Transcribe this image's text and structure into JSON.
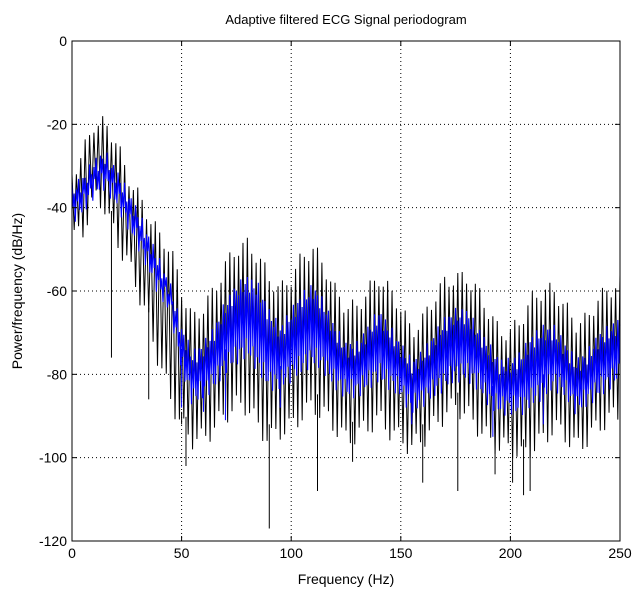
{
  "chart_data": {
    "type": "line",
    "title": "Adaptive filtered ECG Signal periodogram",
    "xlabel": "Frequency (Hz)",
    "ylabel": "Power/frequency (dB/Hz)",
    "xlim": [
      0,
      250
    ],
    "ylim": [
      -120,
      0
    ],
    "xticks": [
      "0",
      "50",
      "100",
      "150",
      "200",
      "250"
    ],
    "yticks": [
      "-120",
      "-100",
      "-80",
      "-60",
      "-40",
      "-20",
      "0"
    ],
    "grid": true,
    "legend": "none",
    "colors": {
      "series_a": "#000000",
      "series_b": "#0000ff"
    },
    "series": [
      {
        "color": "#000000",
        "x": [
          0,
          5,
          10,
          15,
          20,
          25,
          30,
          35,
          40,
          45,
          50,
          55,
          60,
          65,
          70,
          75,
          80,
          85,
          90,
          95,
          100,
          105,
          110,
          115,
          120,
          125,
          130,
          135,
          140,
          145,
          150,
          155,
          160,
          165,
          170,
          175,
          180,
          185,
          190,
          195,
          200,
          205,
          210,
          215,
          220,
          225,
          230,
          235,
          240,
          245,
          250
        ],
        "upper": [
          -30,
          -25,
          -18,
          -18,
          -22,
          -30,
          -35,
          -40,
          -45,
          -48,
          -58,
          -65,
          -62,
          -58,
          -52,
          -48,
          -47,
          -50,
          -55,
          -58,
          -55,
          -50,
          -48,
          -52,
          -58,
          -62,
          -62,
          -58,
          -55,
          -58,
          -62,
          -68,
          -65,
          -60,
          -56,
          -55,
          -55,
          -58,
          -63,
          -68,
          -68,
          -65,
          -60,
          -58,
          -58,
          -62,
          -66,
          -65,
          -60,
          -58,
          -56
        ],
        "lower": [
          -50,
          -48,
          -40,
          -42,
          -50,
          -55,
          -62,
          -70,
          -80,
          -88,
          -95,
          -98,
          -98,
          -95,
          -92,
          -90,
          -90,
          -95,
          -98,
          -96,
          -95,
          -92,
          -90,
          -92,
          -95,
          -98,
          -97,
          -95,
          -93,
          -96,
          -98,
          -100,
          -98,
          -95,
          -92,
          -90,
          -92,
          -95,
          -98,
          -100,
          -100,
          -102,
          -100,
          -98,
          -95,
          -97,
          -100,
          -98,
          -95,
          -93,
          -92
        ],
        "spikes": [
          [
            18,
            -76
          ],
          [
            35,
            -86
          ],
          [
            50,
            -92
          ],
          [
            52,
            -102
          ],
          [
            90,
            -117
          ],
          [
            112,
            -108
          ],
          [
            128,
            -101
          ],
          [
            160,
            -106
          ],
          [
            176,
            -108
          ],
          [
            193,
            -104
          ],
          [
            201,
            -106
          ],
          [
            206,
            -109
          ],
          [
            209,
            -108
          ]
        ]
      },
      {
        "color": "#0000ff",
        "x": [
          0,
          5,
          10,
          15,
          20,
          25,
          30,
          35,
          40,
          45,
          50,
          55,
          60,
          65,
          70,
          75,
          80,
          85,
          90,
          95,
          100,
          105,
          110,
          115,
          120,
          125,
          130,
          135,
          140,
          145,
          150,
          155,
          160,
          165,
          170,
          175,
          180,
          185,
          190,
          195,
          200,
          205,
          210,
          215,
          220,
          225,
          230,
          235,
          240,
          245,
          250
        ],
        "upper": [
          -34,
          -32,
          -28,
          -26,
          -30,
          -35,
          -40,
          -46,
          -52,
          -58,
          -68,
          -74,
          -72,
          -68,
          -62,
          -58,
          -56,
          -58,
          -64,
          -68,
          -64,
          -60,
          -58,
          -62,
          -68,
          -72,
          -72,
          -68,
          -64,
          -68,
          -72,
          -76,
          -74,
          -70,
          -66,
          -64,
          -64,
          -68,
          -72,
          -76,
          -76,
          -74,
          -70,
          -68,
          -68,
          -72,
          -76,
          -74,
          -70,
          -68,
          -66
        ],
        "lower": [
          -44,
          -42,
          -38,
          -36,
          -40,
          -45,
          -50,
          -56,
          -62,
          -66,
          -80,
          -88,
          -86,
          -84,
          -80,
          -78,
          -76,
          -80,
          -84,
          -84,
          -82,
          -80,
          -78,
          -80,
          -84,
          -86,
          -86,
          -84,
          -82,
          -84,
          -86,
          -90,
          -88,
          -86,
          -84,
          -82,
          -82,
          -84,
          -88,
          -90,
          -90,
          -90,
          -88,
          -86,
          -84,
          -86,
          -90,
          -88,
          -86,
          -84,
          -82
        ],
        "spikes": [
          [
            50,
            -88
          ],
          [
            60,
            -89
          ],
          [
            70,
            -91
          ],
          [
            95,
            -88
          ],
          [
            155,
            -92
          ],
          [
            192,
            -95
          ],
          [
            215,
            -92
          ]
        ]
      }
    ]
  }
}
